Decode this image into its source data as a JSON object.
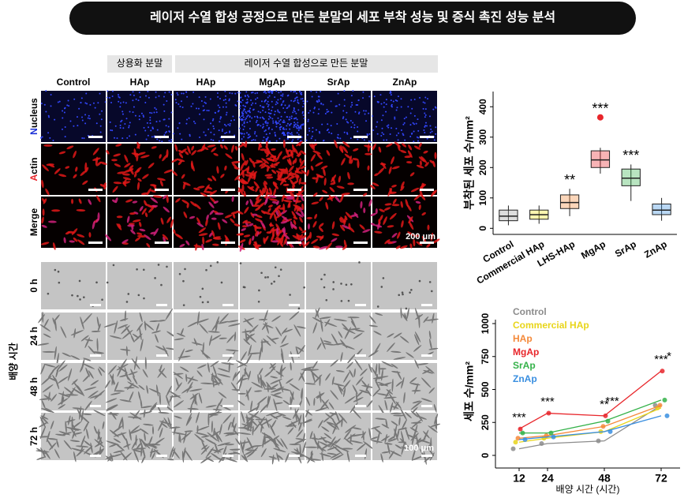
{
  "title": "레이저 수열 합성 공정으로 만든 분말의 세포 부착 성능 및 증식 촉진 성능 분석",
  "figure": {
    "group_headers": [
      "상용화 분말",
      "레이저 수열 합성으로 만든 분말"
    ],
    "columns": [
      "Control",
      "HAp",
      "HAp",
      "MgAp",
      "SrAp",
      "ZnAp"
    ],
    "stain_rows": [
      "Nucleus",
      "Actin",
      "Merge"
    ],
    "time_label": "배양 시간",
    "time_rows": [
      "0 h",
      "24 h",
      "48 h",
      "72 h"
    ],
    "scale_labels": [
      "200 μm",
      "100 μm"
    ]
  },
  "chart_data": [
    {
      "type": "box",
      "ylabel": "부착된 세포 수/mm²",
      "categories": [
        "Control",
        "Commercial HAp",
        "LHS-HAp",
        "MgAp",
        "SrAp",
        "ZnAp"
      ],
      "colors": [
        "#9e9e9e",
        "#f2e21b",
        "#f4893a",
        "#e8262b",
        "#35b24a",
        "#3a8fe0"
      ],
      "boxes": [
        {
          "min": 10,
          "q1": 25,
          "median": 40,
          "q3": 60,
          "max": 75
        },
        {
          "min": 15,
          "q1": 30,
          "median": 45,
          "q3": 60,
          "max": 75
        },
        {
          "min": 40,
          "q1": 65,
          "median": 85,
          "q3": 110,
          "max": 130
        },
        {
          "min": 180,
          "q1": 200,
          "median": 225,
          "q3": 255,
          "max": 265
        },
        {
          "min": 90,
          "q1": 140,
          "median": 165,
          "q3": 195,
          "max": 210
        },
        {
          "min": 25,
          "q1": 45,
          "median": 60,
          "q3": 80,
          "max": 100
        }
      ],
      "outliers": [
        [],
        [],
        [],
        [
          365
        ],
        [],
        []
      ],
      "annotations": [
        null,
        null,
        "**",
        "***",
        "***",
        null
      ],
      "ylim": [
        -20,
        450
      ],
      "yticks": [
        0,
        100,
        200,
        300,
        400
      ]
    },
    {
      "type": "line",
      "ylabel": "세포 수/mm²",
      "xlabel": "배양 시간 (시간)",
      "x": [
        12,
        24,
        48,
        72
      ],
      "xlim": [
        2,
        80
      ],
      "xticks": [
        12,
        24,
        48,
        72
      ],
      "ylim": [
        -30,
        1000
      ],
      "yticks": [
        0,
        250,
        500,
        750,
        1000
      ],
      "series": [
        {
          "name": "Control",
          "color": "#8c8c8c",
          "values": [
            50,
            90,
            110,
            380
          ]
        },
        {
          "name": "Commercial HAp",
          "color": "#e8d51a",
          "values": [
            100,
            130,
            180,
            360
          ]
        },
        {
          "name": "HAp",
          "color": "#f4893a",
          "values": [
            130,
            150,
            220,
            380
          ]
        },
        {
          "name": "MgAp",
          "color": "#e8262b",
          "values": [
            200,
            320,
            300,
            640
          ]
        },
        {
          "name": "SrAp",
          "color": "#35b24a",
          "values": [
            170,
            170,
            260,
            420
          ]
        },
        {
          "name": "ZnAp",
          "color": "#3a8fe0",
          "values": [
            120,
            140,
            180,
            300
          ]
        }
      ],
      "annotations": [
        {
          "x": 12,
          "text": "***"
        },
        {
          "x": 24,
          "text": "***"
        },
        {
          "x": 48,
          "text": "**"
        },
        {
          "x": 48,
          "text": "***"
        },
        {
          "x": 72,
          "text": "***"
        },
        {
          "x": 72,
          "text": "*"
        }
      ]
    }
  ]
}
